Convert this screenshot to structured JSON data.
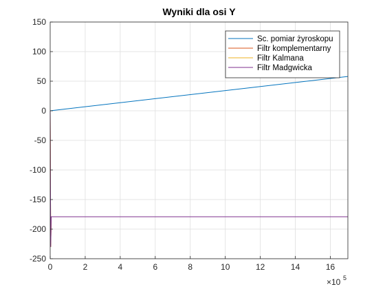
{
  "chart_data": {
    "type": "line",
    "title": "Wyniki dla osi Y",
    "xlabel": "",
    "ylabel": "",
    "xlim": [
      0,
      1700000
    ],
    "ylim": [
      -250,
      150
    ],
    "x_exponent_label": "×10",
    "x_exponent_power": "5",
    "x_ticks": [
      0,
      200000,
      400000,
      600000,
      800000,
      1000000,
      1200000,
      1400000,
      1600000
    ],
    "x_tick_labels": [
      "0",
      "2",
      "4",
      "6",
      "8",
      "10",
      "12",
      "14",
      "16"
    ],
    "y_ticks": [
      -250,
      -200,
      -150,
      -100,
      -50,
      0,
      50,
      100,
      150
    ],
    "y_tick_labels": [
      "-250",
      "-200",
      "-150",
      "-100",
      "-50",
      "0",
      "50",
      "100",
      "150"
    ],
    "grid": true,
    "legend_position": "top-right",
    "series": [
      {
        "name": "Sc. pomiar żyroskopu",
        "color": "#0072BD",
        "x": [
          0,
          1700000
        ],
        "y": [
          0,
          58
        ]
      },
      {
        "name": "Filtr komplementarny",
        "color": "#D95319",
        "x": [
          0,
          3000,
          6000,
          1700000
        ],
        "y": [
          0,
          -230,
          -179,
          -179
        ]
      },
      {
        "name": "Filtr Kalmana",
        "color": "#EDB120",
        "x": [
          0,
          3000,
          6000,
          1700000
        ],
        "y": [
          0,
          -230,
          -179,
          -179
        ]
      },
      {
        "name": "Filtr Madgwicka",
        "color": "#7E2F8E",
        "x": [
          0,
          3000,
          6000,
          1700000
        ],
        "y": [
          0,
          -230,
          -179,
          -179
        ]
      }
    ]
  }
}
